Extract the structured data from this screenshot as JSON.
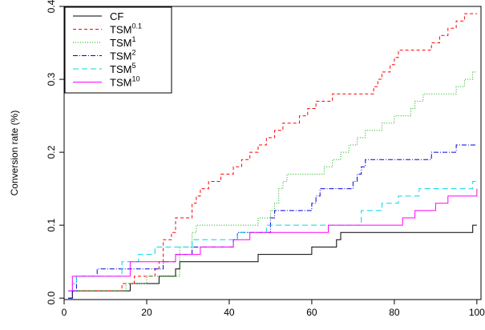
{
  "chart_data": {
    "type": "line",
    "title": "",
    "xlabel": "",
    "ylabel": "Conversion rate (%)",
    "xlim": [
      0,
      101
    ],
    "ylim": [
      -0.002,
      0.4
    ],
    "x_ticks": [
      0,
      20,
      40,
      60,
      80,
      100
    ],
    "x_tick_labels": [
      "0",
      "20",
      "40",
      "60",
      "80",
      "100"
    ],
    "y_ticks": [
      0.0,
      0.1,
      0.2,
      0.3,
      0.4
    ],
    "y_tick_labels": [
      "0.0",
      "0.1",
      "0.2",
      "0.3",
      "0.4"
    ],
    "step": true,
    "grid": false,
    "legend_position": "top-left",
    "series": [
      {
        "name": "CF",
        "base": "CF",
        "sup": "",
        "color": "#000000",
        "dash": "",
        "points": [
          [
            1,
            0.0
          ],
          [
            2,
            0.01
          ],
          [
            15,
            0.01
          ],
          [
            16,
            0.02
          ],
          [
            22,
            0.02
          ],
          [
            23,
            0.03
          ],
          [
            26,
            0.03
          ],
          [
            27,
            0.04
          ],
          [
            28,
            0.05
          ],
          [
            46,
            0.05
          ],
          [
            47,
            0.06
          ],
          [
            59,
            0.06
          ],
          [
            60,
            0.07
          ],
          [
            65,
            0.07
          ],
          [
            66,
            0.08
          ],
          [
            67,
            0.09
          ],
          [
            98,
            0.09
          ],
          [
            99,
            0.1
          ],
          [
            100,
            0.1
          ]
        ]
      },
      {
        "name": "TSM^0.1",
        "base": "TSM",
        "sup": "0.1",
        "color": "#ff0000",
        "dash": "4,3",
        "points": [
          [
            1,
            0.01
          ],
          [
            13,
            0.01
          ],
          [
            14,
            0.02
          ],
          [
            17,
            0.03
          ],
          [
            21,
            0.03
          ],
          [
            22,
            0.04
          ],
          [
            23,
            0.05
          ],
          [
            24,
            0.08
          ],
          [
            26,
            0.09
          ],
          [
            27,
            0.11
          ],
          [
            30,
            0.11
          ],
          [
            31,
            0.13
          ],
          [
            32,
            0.14
          ],
          [
            33,
            0.15
          ],
          [
            35,
            0.16
          ],
          [
            38,
            0.17
          ],
          [
            41,
            0.18
          ],
          [
            43,
            0.19
          ],
          [
            45,
            0.2
          ],
          [
            47,
            0.21
          ],
          [
            49,
            0.22
          ],
          [
            51,
            0.23
          ],
          [
            53,
            0.24
          ],
          [
            57,
            0.25
          ],
          [
            59,
            0.26
          ],
          [
            61,
            0.27
          ],
          [
            65,
            0.28
          ],
          [
            75,
            0.29
          ],
          [
            76,
            0.3
          ],
          [
            77,
            0.31
          ],
          [
            79,
            0.32
          ],
          [
            80,
            0.33
          ],
          [
            81,
            0.34
          ],
          [
            89,
            0.35
          ],
          [
            91,
            0.36
          ],
          [
            93,
            0.37
          ],
          [
            95,
            0.38
          ],
          [
            97,
            0.39
          ],
          [
            100,
            0.39
          ]
        ]
      },
      {
        "name": "TSM^1",
        "base": "TSM",
        "sup": "1",
        "color": "#00b000",
        "dash": "1,2",
        "points": [
          [
            1,
            0.01
          ],
          [
            14,
            0.01
          ],
          [
            15,
            0.02
          ],
          [
            19,
            0.02
          ],
          [
            20,
            0.03
          ],
          [
            27,
            0.03
          ],
          [
            28,
            0.07
          ],
          [
            31,
            0.09
          ],
          [
            32,
            0.1
          ],
          [
            46,
            0.1
          ],
          [
            47,
            0.11
          ],
          [
            50,
            0.12
          ],
          [
            51,
            0.13
          ],
          [
            52,
            0.15
          ],
          [
            53,
            0.16
          ],
          [
            54,
            0.17
          ],
          [
            63,
            0.18
          ],
          [
            65,
            0.19
          ],
          [
            67,
            0.2
          ],
          [
            69,
            0.21
          ],
          [
            71,
            0.22
          ],
          [
            73,
            0.23
          ],
          [
            77,
            0.24
          ],
          [
            80,
            0.25
          ],
          [
            84,
            0.26
          ],
          [
            85,
            0.27
          ],
          [
            87,
            0.28
          ],
          [
            95,
            0.29
          ],
          [
            97,
            0.3
          ],
          [
            99,
            0.31
          ],
          [
            100,
            0.31
          ]
        ]
      },
      {
        "name": "TSM^2",
        "base": "TSM",
        "sup": "2",
        "color": "#0000dd",
        "dash": "6,2,1,2",
        "points": [
          [
            1,
            0.0
          ],
          [
            2,
            0.01
          ],
          [
            3,
            0.03
          ],
          [
            7,
            0.03
          ],
          [
            8,
            0.04
          ],
          [
            23,
            0.04
          ],
          [
            24,
            0.05
          ],
          [
            26,
            0.05
          ],
          [
            27,
            0.06
          ],
          [
            30,
            0.06
          ],
          [
            31,
            0.07
          ],
          [
            40,
            0.07
          ],
          [
            41,
            0.08
          ],
          [
            42,
            0.09
          ],
          [
            49,
            0.09
          ],
          [
            50,
            0.11
          ],
          [
            51,
            0.12
          ],
          [
            59,
            0.12
          ],
          [
            60,
            0.13
          ],
          [
            61,
            0.14
          ],
          [
            62,
            0.15
          ],
          [
            69,
            0.15
          ],
          [
            70,
            0.16
          ],
          [
            71,
            0.17
          ],
          [
            72,
            0.18
          ],
          [
            73,
            0.19
          ],
          [
            87,
            0.19
          ],
          [
            89,
            0.2
          ],
          [
            93,
            0.2
          ],
          [
            95,
            0.21
          ],
          [
            100,
            0.21
          ]
        ]
      },
      {
        "name": "TSM^5",
        "base": "TSM",
        "sup": "5",
        "color": "#00d8e8",
        "dash": "7,4",
        "points": [
          [
            1,
            0.01
          ],
          [
            2,
            0.02
          ],
          [
            3,
            0.03
          ],
          [
            13,
            0.03
          ],
          [
            14,
            0.05
          ],
          [
            17,
            0.05
          ],
          [
            18,
            0.06
          ],
          [
            21,
            0.06
          ],
          [
            22,
            0.07
          ],
          [
            30,
            0.07
          ],
          [
            31,
            0.08
          ],
          [
            41,
            0.08
          ],
          [
            42,
            0.09
          ],
          [
            47,
            0.09
          ],
          [
            49,
            0.1
          ],
          [
            71,
            0.1
          ],
          [
            72,
            0.12
          ],
          [
            76,
            0.12
          ],
          [
            77,
            0.13
          ],
          [
            80,
            0.13
          ],
          [
            81,
            0.14
          ],
          [
            85,
            0.14
          ],
          [
            86,
            0.15
          ],
          [
            98,
            0.15
          ],
          [
            99,
            0.16
          ],
          [
            100,
            0.16
          ]
        ]
      },
      {
        "name": "TSM^10",
        "base": "TSM",
        "sup": "10",
        "color": "#ff00ff",
        "dash": "",
        "points": [
          [
            1,
            0.01
          ],
          [
            2,
            0.03
          ],
          [
            15,
            0.03
          ],
          [
            16,
            0.05
          ],
          [
            26,
            0.05
          ],
          [
            27,
            0.06
          ],
          [
            32,
            0.06
          ],
          [
            33,
            0.07
          ],
          [
            40,
            0.07
          ],
          [
            41,
            0.08
          ],
          [
            44,
            0.08
          ],
          [
            45,
            0.09
          ],
          [
            63,
            0.09
          ],
          [
            64,
            0.1
          ],
          [
            81,
            0.1
          ],
          [
            82,
            0.11
          ],
          [
            84,
            0.11
          ],
          [
            85,
            0.12
          ],
          [
            89,
            0.12
          ],
          [
            90,
            0.13
          ],
          [
            92,
            0.13
          ],
          [
            93,
            0.14
          ],
          [
            99,
            0.14
          ],
          [
            100,
            0.15
          ]
        ]
      }
    ]
  }
}
